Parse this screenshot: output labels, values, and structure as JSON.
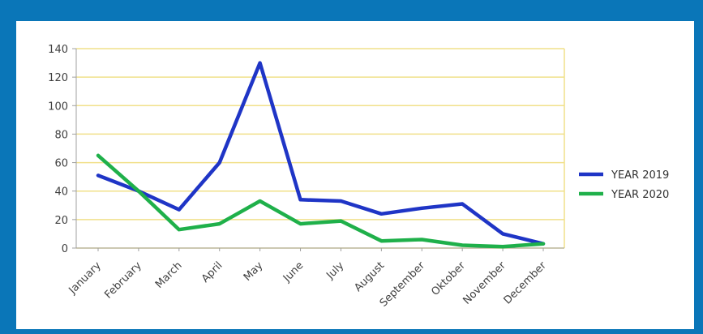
{
  "chart_data": {
    "type": "line",
    "categories": [
      "January",
      "February",
      "March",
      "April",
      "May",
      "June",
      "July",
      "August",
      "September",
      "Oktober",
      "November",
      "December"
    ],
    "series": [
      {
        "name": "YEAR 2019",
        "color": "#1f35c6",
        "values": [
          51,
          40,
          27,
          60,
          130,
          34,
          33,
          24,
          28,
          31,
          10,
          3
        ]
      },
      {
        "name": "YEAR 2020",
        "color": "#1fb04a",
        "values": [
          65,
          40,
          13,
          17,
          33,
          17,
          19,
          5,
          6,
          2,
          1,
          3
        ]
      }
    ],
    "yticks": [
      "0",
      "20",
      "40",
      "60",
      "80",
      "100",
      "120",
      "140"
    ],
    "ylim": [
      0,
      140
    ],
    "grid": true,
    "grid_color": "#f1e08a",
    "legend_position": "right"
  }
}
